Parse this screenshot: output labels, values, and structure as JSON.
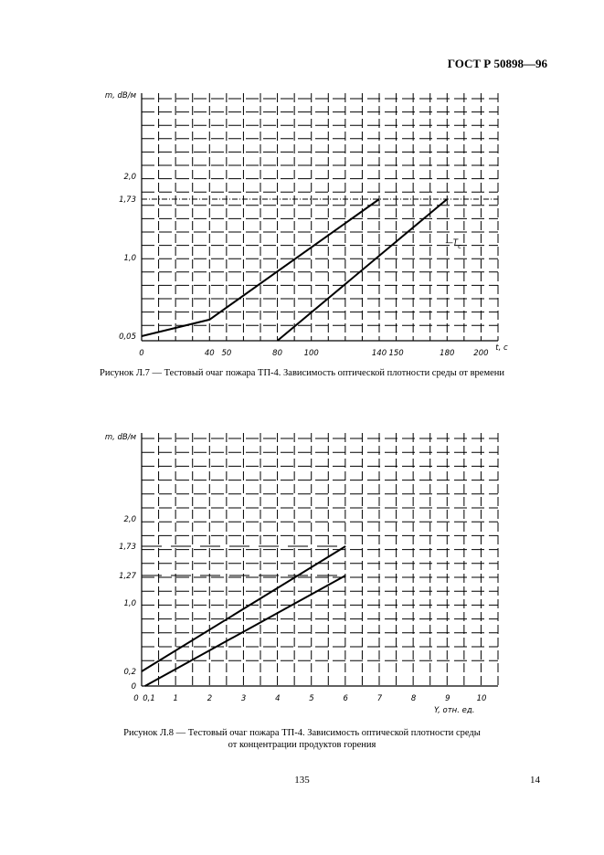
{
  "header": {
    "standard_code": "ГОСТ Р 50898—96"
  },
  "figures": [
    {
      "caption": "Рисунок Л.7 — Тестовый очаг пожара ТП-4. Зависимость оптической плотности среды от времени",
      "ylabel": "m, dB/м",
      "xlabel": "t, c",
      "curve_label": "T_c",
      "curve_label_main": "T",
      "curve_label_sub": "c"
    },
    {
      "caption_line1": "Рисунок Л.8 — Тестовый очаг пожара ТП-4. Зависимость оптической плотности среды",
      "caption_line2": "от концентрации продуктов горения",
      "ylabel": "m, dB/м",
      "xlabel": "Y, отн. ед."
    }
  ],
  "chart_data": [
    {
      "type": "line",
      "title": "",
      "xlabel": "t, c",
      "ylabel": "m, dB/м",
      "xlim": [
        0,
        210
      ],
      "x_ticks": [
        {
          "label": "0",
          "value": 0
        },
        {
          "label": "40",
          "value": 40
        },
        {
          "label": "50",
          "value": 50
        },
        {
          "label": "80",
          "value": 80
        },
        {
          "label": "100",
          "value": 100
        },
        {
          "label": "140",
          "value": 140
        },
        {
          "label": "150",
          "value": 150
        },
        {
          "label": "180",
          "value": 180
        },
        {
          "label": "200",
          "value": 200
        }
      ],
      "y_ticks": [
        {
          "label": "0,05",
          "value": 0.05
        },
        {
          "label": "1,0",
          "value": 1.0
        },
        {
          "label": "1,73",
          "value": 1.73
        },
        {
          "label": "2,0",
          "value": 2.0
        }
      ],
      "reference_line": {
        "y": 1.73
      },
      "series": [
        {
          "x": [
            0,
            40,
            140
          ],
          "y": [
            0.05,
            0.25,
            1.73
          ]
        },
        {
          "name": "T_c",
          "x": [
            80,
            180
          ],
          "y": [
            0.0,
            1.73
          ]
        }
      ],
      "grid": true
    },
    {
      "type": "line",
      "title": "",
      "xlabel": "Y, отн. ед.",
      "ylabel": "m, dB/м",
      "xlim": [
        0,
        10.5
      ],
      "x_ticks": [
        {
          "label": "0",
          "value": 0
        },
        {
          "label": "0,1",
          "value": 0.1
        },
        {
          "label": "1",
          "value": 1
        },
        {
          "label": "2",
          "value": 2
        },
        {
          "label": "3",
          "value": 3
        },
        {
          "label": "4",
          "value": 4
        },
        {
          "label": "5",
          "value": 5
        },
        {
          "label": "6",
          "value": 6
        },
        {
          "label": "7",
          "value": 7
        },
        {
          "label": "8",
          "value": 8
        },
        {
          "label": "9",
          "value": 9
        },
        {
          "label": "10",
          "value": 10
        }
      ],
      "y_ticks": [
        {
          "label": "0",
          "value": 0
        },
        {
          "label": "0,2",
          "value": 0.2
        },
        {
          "label": "1,0",
          "value": 1.0
        },
        {
          "label": "1,27",
          "value": 1.27
        },
        {
          "label": "1,73",
          "value": 1.73
        },
        {
          "label": "2,0",
          "value": 2.0
        }
      ],
      "reference_lines": [
        {
          "y": 1.73,
          "x_max": 6
        },
        {
          "y": 1.27,
          "x_max": 6
        }
      ],
      "series": [
        {
          "x": [
            0,
            6
          ],
          "y": [
            0.2,
            1.73
          ]
        },
        {
          "x": [
            0.1,
            6
          ],
          "y": [
            0.0,
            1.27
          ]
        }
      ],
      "grid": true
    }
  ],
  "footer": {
    "page_number": "135",
    "sheet_number": "14"
  }
}
